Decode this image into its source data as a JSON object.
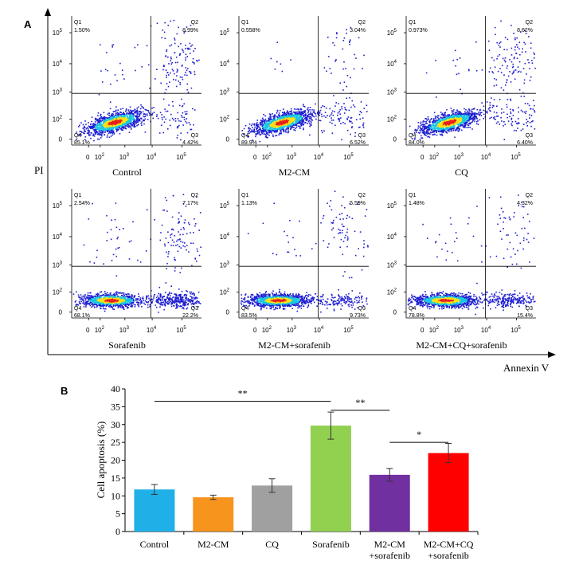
{
  "panel_a": {
    "label": "A",
    "y_axis_label": "PI",
    "x_axis_label": "Annexin V",
    "tick_labels_y": [
      "0",
      "10",
      "10",
      "10",
      "10"
    ],
    "tick_exponents_y": [
      "",
      "2",
      "3",
      "4",
      "5"
    ],
    "tick_labels_x": [
      "0",
      "10",
      "10",
      "10",
      "10"
    ],
    "tick_exponents_x": [
      "",
      "2",
      "3",
      "4",
      "5"
    ],
    "quadrant_names": [
      "Q1",
      "Q2",
      "Q3",
      "Q4"
    ]
  },
  "panel_b": {
    "label": "B",
    "significance_marks": [
      "**",
      "**",
      "*"
    ]
  },
  "colors": {
    "density_low": "#1f1fd1",
    "density_mid": "#18c8e0",
    "density_high": "#ffe014",
    "density_peak": "#e8211b",
    "bar_colors": [
      "#1fb0e8",
      "#f7941d",
      "#a0a0a0",
      "#92d050",
      "#7030a0",
      "#ff0000"
    ]
  },
  "chart_data": [
    {
      "type": "scatter",
      "name": "flow-cytometry",
      "xlabel": "Annexin V",
      "ylabel": "PI",
      "scale": "log",
      "plots": [
        {
          "title": "Control",
          "quadrants": {
            "Q1": "1.50%",
            "Q2": "8.99%",
            "Q3": "4.42%",
            "Q4": "85.1%"
          }
        },
        {
          "title": "M2-CM",
          "quadrants": {
            "Q1": "0.558%",
            "Q2": "3.04%",
            "Q3": "6.52%",
            "Q4": "89.9%"
          }
        },
        {
          "title": "CQ",
          "quadrants": {
            "Q1": "0.973%",
            "Q2": "8.62%",
            "Q3": "6.40%",
            "Q4": "84.0%"
          }
        },
        {
          "title": "Sorafenib",
          "quadrants": {
            "Q1": "2.54%",
            "Q2": "7.17%",
            "Q3": "22.2%",
            "Q4": "68.1%"
          }
        },
        {
          "title": "M2-CM+sorafenib",
          "quadrants": {
            "Q1": "1.13%",
            "Q2": "5.59%",
            "Q3": "9.73%",
            "Q4": "83.5%"
          }
        },
        {
          "title": "M2-CM+CQ+sorafenib",
          "quadrants": {
            "Q1": "1.48%",
            "Q2": "4.32%",
            "Q3": "15.4%",
            "Q4": "78.8%"
          }
        }
      ]
    },
    {
      "type": "bar",
      "categories": [
        "Control",
        "M2-CM",
        "CQ",
        "Sorafenib",
        "M2-CM\n+sorafenib",
        "M2-CM+CQ\n+sorafenib"
      ],
      "values": [
        11.8,
        9.6,
        12.9,
        29.7,
        15.9,
        22.0
      ],
      "errors": [
        1.4,
        0.6,
        1.9,
        3.8,
        1.8,
        2.7
      ],
      "ylabel": "Cell apoptosis (%)",
      "xlabel": "",
      "ylim": [
        0,
        40
      ],
      "yticks": [
        0,
        5,
        10,
        15,
        20,
        25,
        30,
        35,
        40
      ],
      "grid": false
    }
  ]
}
